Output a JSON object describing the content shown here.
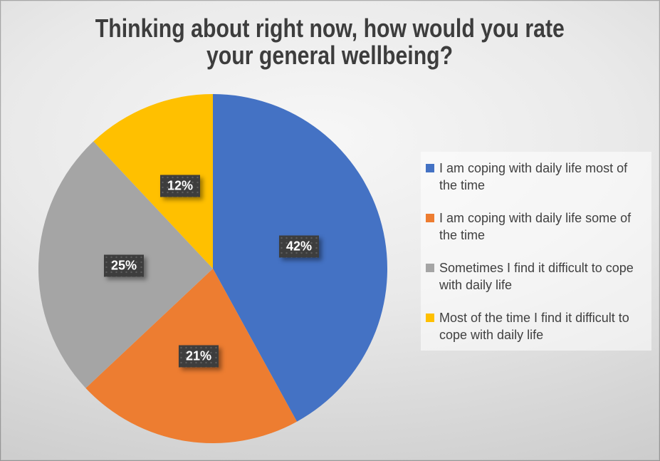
{
  "title": {
    "line1": "Thinking about right now, how would you rate",
    "line2": "your general wellbeing?"
  },
  "chart_data": {
    "type": "pie",
    "title": "Thinking about right now, how would you rate your general wellbeing?",
    "categories": [
      "I am coping with daily life most of the time",
      "I am coping with daily life some of the time",
      "Sometimes I find it difficult to cope with daily life",
      "Most of the time I find it difficult to cope with daily life"
    ],
    "values": [
      42,
      21,
      25,
      12
    ],
    "data_labels": [
      "42%",
      "21%",
      "25%",
      "12%"
    ],
    "colors": [
      "#4472C4",
      "#ED7D31",
      "#A5A5A5",
      "#FFC000"
    ],
    "start_angle_deg": 0,
    "direction": "clockwise",
    "legend_position": "right",
    "label_text_color": "#ffffff",
    "label_box_color": "#3d3d3d",
    "title_color": "#3d3d3d",
    "legend_text_color": "#404040"
  }
}
